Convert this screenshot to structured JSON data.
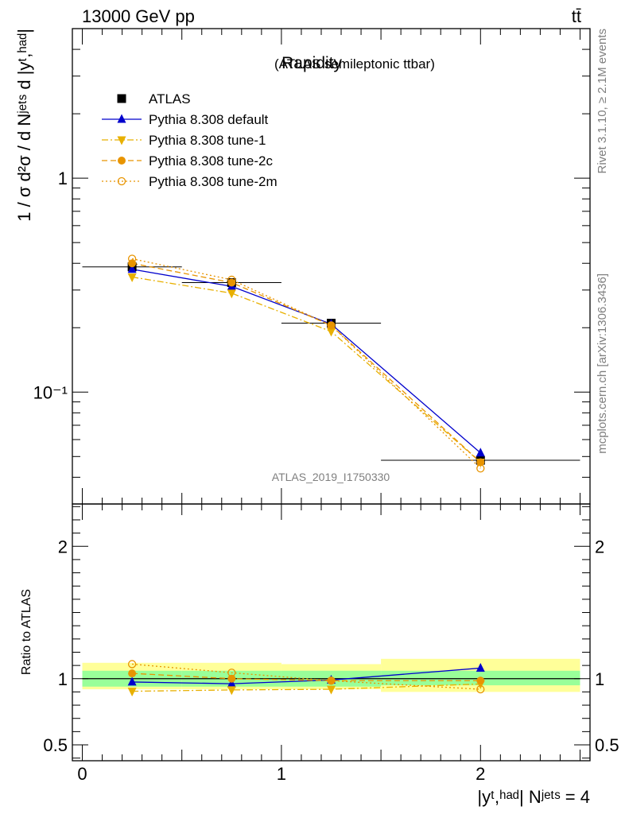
{
  "header": {
    "energy_label": "13000 GeV pp",
    "process_label": "tt̄"
  },
  "side_text": {
    "rivet": "Rivet 3.1.10, ≥ 2.1M events",
    "source": "mcplots.cern.ch [arXiv:1306.3436]"
  },
  "analysis_id": "ATLAS_2019_I1750330",
  "chart_data": [
    {
      "type": "line",
      "title": "Rapidity",
      "subtitle": "(ATLAS semileptonic ttbar)",
      "ylabel": "1 / σ d²σ / d Nʲᵉᵗˢ d |yᵗ,ʰᵃᵈ|",
      "yscale": "log",
      "ylim": [
        0.03,
        5.0
      ],
      "xlim": [
        -0.05,
        2.55
      ],
      "x_bin_edges": [
        0,
        0.5,
        1.0,
        1.5,
        2.5
      ],
      "x": [
        0.25,
        0.75,
        1.25,
        2.0
      ],
      "legend_position": "top-left",
      "y_ticks": [
        {
          "value": 1,
          "label": "1"
        },
        {
          "value": 0.1,
          "label": "10⁻¹"
        }
      ],
      "series": [
        {
          "name": "ATLAS",
          "color": "#000000",
          "marker": "square",
          "line": "none",
          "values": [
            0.385,
            0.325,
            0.21,
            0.048
          ]
        },
        {
          "name": "Pythia 8.308 default",
          "color": "#0000cc",
          "marker": "triangle-up",
          "line": "solid",
          "values": [
            0.375,
            0.312,
            0.208,
            0.052
          ]
        },
        {
          "name": "Pythia 8.308 tune-1",
          "color": "#e8b000",
          "marker": "triangle-down",
          "line": "dash-dot",
          "values": [
            0.345,
            0.29,
            0.192,
            0.047
          ]
        },
        {
          "name": "Pythia 8.308 tune-2c",
          "color": "#e89400",
          "marker": "circle",
          "line": "dashed",
          "values": [
            0.4,
            0.325,
            0.205,
            0.047
          ]
        },
        {
          "name": "Pythia 8.308 tune-2m",
          "color": "#e89400",
          "marker": "open-circle",
          "line": "dotted",
          "values": [
            0.42,
            0.335,
            0.205,
            0.044
          ]
        }
      ]
    },
    {
      "type": "line",
      "ylabel": "Ratio to ATLAS",
      "xlabel": "|yᵗ,ʰᵃᵈ| Nʲᵉᵗˢ = 4",
      "ylim": [
        0.38,
        2.32
      ],
      "xlim": [
        -0.05,
        2.55
      ],
      "x": [
        0.25,
        0.75,
        1.25,
        2.0
      ],
      "y_ticks": [
        {
          "value": 0.5,
          "label": "0.5"
        },
        {
          "value": 1,
          "label": "1"
        },
        {
          "value": 2,
          "label": "2"
        }
      ],
      "x_ticks": [
        {
          "value": 0,
          "label": "0"
        },
        {
          "value": 1,
          "label": "1"
        },
        {
          "value": 2,
          "label": "2"
        }
      ],
      "bands": {
        "x_bin_edges": [
          0,
          0.5,
          1.0,
          1.5,
          2.5
        ],
        "stat": [
          [
            0.94,
            1.06
          ],
          [
            0.94,
            1.06
          ],
          [
            0.94,
            1.06
          ],
          [
            0.95,
            1.06
          ]
        ],
        "total": [
          [
            0.92,
            1.12
          ],
          [
            0.92,
            1.12
          ],
          [
            0.92,
            1.11
          ],
          [
            0.9,
            1.15
          ]
        ]
      },
      "series": [
        {
          "name": "Pythia 8.308 default",
          "color": "#0000cc",
          "marker": "triangle-up",
          "line": "solid",
          "values": [
            0.975,
            0.962,
            0.99,
            1.08
          ]
        },
        {
          "name": "Pythia 8.308 tune-1",
          "color": "#e8b000",
          "marker": "triangle-down",
          "line": "dash-dot",
          "values": [
            0.905,
            0.915,
            0.92,
            0.96
          ]
        },
        {
          "name": "Pythia 8.308 tune-2c",
          "color": "#e89400",
          "marker": "circle",
          "line": "dashed",
          "values": [
            1.04,
            1.0,
            0.985,
            0.985
          ]
        },
        {
          "name": "Pythia 8.308 tune-2m",
          "color": "#e89400",
          "marker": "open-circle",
          "line": "dotted",
          "values": [
            1.11,
            1.045,
            0.985,
            0.92
          ]
        }
      ]
    }
  ]
}
